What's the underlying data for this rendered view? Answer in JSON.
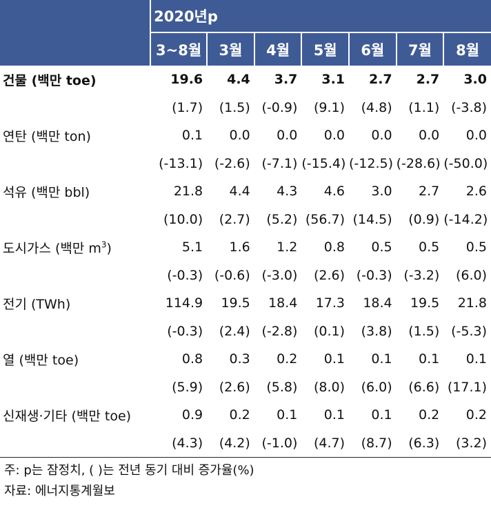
{
  "header": {
    "year_label": "2020년p",
    "months": [
      "3~8월",
      "3월",
      "4월",
      "5월",
      "6월",
      "7월",
      "8월"
    ]
  },
  "rows": [
    {
      "label": "건물 (백만 toe)",
      "values": [
        "19.6",
        "4.4",
        "3.7",
        "3.1",
        "2.7",
        "2.7",
        "3.0"
      ],
      "changes": [
        "(1.7)",
        "(1.5)",
        "(-0.9)",
        "(9.1)",
        "(4.8)",
        "(1.1)",
        "(-3.8)"
      ],
      "bold": true
    },
    {
      "label": "연탄 (백만 ton)",
      "values": [
        "0.1",
        "0.0",
        "0.0",
        "0.0",
        "0.0",
        "0.0",
        "0.0"
      ],
      "changes": [
        "(-13.1)",
        "(-2.6)",
        "(-7.1)",
        "(-15.4)",
        "(-12.5)",
        "(-28.6)",
        "(-50.0)"
      ]
    },
    {
      "label": "석유 (백만 bbl)",
      "values": [
        "21.8",
        "4.4",
        "4.3",
        "4.6",
        "3.0",
        "2.7",
        "2.6"
      ],
      "changes": [
        "(10.0)",
        "(2.7)",
        "(5.2)",
        "(56.7)",
        "(14.5)",
        "(0.9)",
        "(-14.2)"
      ]
    },
    {
      "label": "도시가스 (백만 m",
      "label_sup": "3",
      "label_tail": ")",
      "values": [
        "5.1",
        "1.6",
        "1.2",
        "0.8",
        "0.5",
        "0.5",
        "0.5"
      ],
      "changes": [
        "(-0.3)",
        "(-0.6)",
        "(-3.0)",
        "(2.6)",
        "(-0.3)",
        "(-3.2)",
        "(6.0)"
      ]
    },
    {
      "label": "전기 (TWh)",
      "values": [
        "114.9",
        "19.5",
        "18.4",
        "17.3",
        "18.4",
        "19.5",
        "21.8"
      ],
      "changes": [
        "(-0.3)",
        "(2.4)",
        "(-2.8)",
        "(0.1)",
        "(3.8)",
        "(1.5)",
        "(-5.3)"
      ]
    },
    {
      "label": "열 (백만 toe)",
      "values": [
        "0.8",
        "0.3",
        "0.2",
        "0.1",
        "0.1",
        "0.1",
        "0.1"
      ],
      "changes": [
        "(5.9)",
        "(2.6)",
        "(5.8)",
        "(8.0)",
        "(6.0)",
        "(6.6)",
        "(17.1)"
      ]
    },
    {
      "label": "신재생·기타 (백만 toe)",
      "values": [
        "0.9",
        "0.2",
        "0.1",
        "0.1",
        "0.1",
        "0.2",
        "0.2"
      ],
      "changes": [
        "(4.3)",
        "(4.2)",
        "(-1.0)",
        "(4.7)",
        "(8.7)",
        "(6.3)",
        "(3.2)"
      ]
    }
  ],
  "notes": {
    "note1": "주: p는 잠정치, (     )는 전년 동기 대비 증가율(%)",
    "note2": "자료: 에너지통계월보"
  }
}
